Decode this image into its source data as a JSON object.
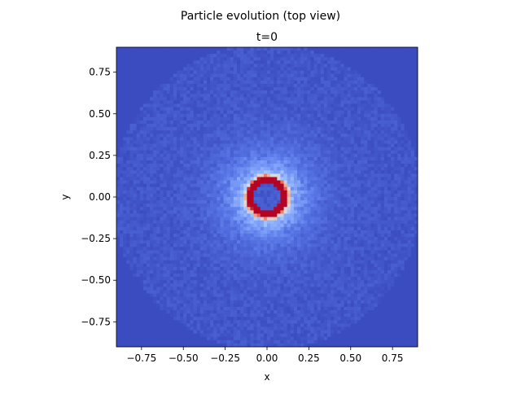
{
  "chart_data": {
    "type": "heatmap",
    "suptitle": "Particle evolution (top view)",
    "title": "t=0",
    "xlabel": "x",
    "ylabel": "y",
    "xlim": [
      -0.9,
      0.9
    ],
    "ylim": [
      -0.9,
      0.9
    ],
    "xticks": [
      -0.75,
      -0.5,
      -0.25,
      0.0,
      0.25,
      0.5,
      0.75
    ],
    "yticks": [
      -0.75,
      -0.5,
      -0.25,
      0.0,
      0.25,
      0.5,
      0.75
    ],
    "xtick_labels": [
      "−0.75",
      "−0.50",
      "−0.25",
      "0.00",
      "0.25",
      "0.50",
      "0.75"
    ],
    "ytick_labels": [
      "−0.75",
      "−0.50",
      "−0.25",
      "0.00",
      "0.25",
      "0.50",
      "0.75"
    ],
    "colormap": "coolwarm",
    "grid_bins": 90,
    "grid": false,
    "density_model": {
      "ring_radius": 0.1,
      "ring_width": 0.025,
      "inner_hole_radius": 0.08,
      "halo_scale": 0.12,
      "outer_radius": 0.92
    },
    "colors": {
      "background_cell": "#3b4cc0",
      "ring_peak": "#b40426"
    }
  }
}
